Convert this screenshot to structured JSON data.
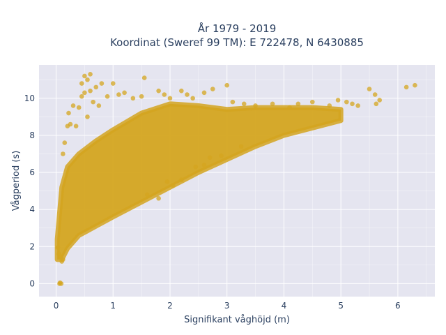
{
  "chart_data": {
    "type": "scatter",
    "title_lines": [
      "År 1979 - 2019",
      "Koordinat (Sweref 99 TM): E 722478, N 6430885"
    ],
    "xlabel": "Signifikant våghöjd (m)",
    "ylabel": "Vågperiod (s)",
    "xlim": [
      -0.3,
      6.65
    ],
    "ylim": [
      -0.7,
      11.8
    ],
    "x_ticks": [
      0,
      1,
      2,
      3,
      4,
      5,
      6
    ],
    "y_ticks": [
      0,
      2,
      4,
      6,
      8,
      10
    ],
    "grid": true,
    "legend": "none",
    "colors": {
      "points": "#d4a520",
      "plot_background": "#e5e5f0",
      "grid": "#ffffff",
      "text": "#2a3f5f"
    },
    "series": [
      {
        "band_lower": [
          [
            0.02,
            1.3
          ],
          [
            0.1,
            1.3
          ],
          [
            0.2,
            1.9
          ],
          [
            0.4,
            2.6
          ],
          [
            0.7,
            3.1
          ],
          [
            1.0,
            3.6
          ],
          [
            1.5,
            4.4
          ],
          [
            2.0,
            5.2
          ],
          [
            2.5,
            6.0
          ],
          [
            3.0,
            6.7
          ],
          [
            3.5,
            7.4
          ],
          [
            4.0,
            8.0
          ],
          [
            4.5,
            8.4
          ],
          [
            5.0,
            8.8
          ]
        ],
        "band_upper": [
          [
            0.02,
            2.4
          ],
          [
            0.1,
            5.2
          ],
          [
            0.2,
            6.3
          ],
          [
            0.4,
            7.0
          ],
          [
            0.7,
            7.7
          ],
          [
            1.0,
            8.3
          ],
          [
            1.5,
            9.2
          ],
          [
            2.0,
            9.7
          ],
          [
            2.5,
            9.6
          ],
          [
            3.0,
            9.4
          ],
          [
            3.5,
            9.5
          ],
          [
            4.0,
            9.5
          ],
          [
            4.5,
            9.5
          ],
          [
            5.0,
            9.4
          ]
        ],
        "points": [
          [
            0.35,
            8.5
          ],
          [
            0.4,
            9.5
          ],
          [
            0.45,
            10.1
          ],
          [
            0.5,
            11.2
          ],
          [
            0.55,
            11.0
          ],
          [
            0.6,
            11.3
          ],
          [
            0.6,
            10.4
          ],
          [
            0.5,
            10.3
          ],
          [
            0.45,
            10.8
          ],
          [
            0.7,
            10.6
          ],
          [
            0.8,
            10.8
          ],
          [
            0.65,
            9.8
          ],
          [
            0.3,
            9.6
          ],
          [
            0.25,
            8.6
          ],
          [
            0.2,
            8.5
          ],
          [
            0.15,
            7.6
          ],
          [
            0.12,
            7.0
          ],
          [
            0.22,
            9.2
          ],
          [
            0.55,
            9.0
          ],
          [
            0.75,
            9.6
          ],
          [
            0.9,
            10.1
          ],
          [
            1.0,
            10.8
          ],
          [
            1.1,
            10.2
          ],
          [
            1.2,
            10.3
          ],
          [
            1.35,
            10.0
          ],
          [
            1.5,
            10.1
          ],
          [
            1.55,
            11.1
          ],
          [
            1.8,
            10.4
          ],
          [
            1.9,
            10.2
          ],
          [
            2.0,
            10.0
          ],
          [
            2.2,
            10.4
          ],
          [
            2.3,
            10.2
          ],
          [
            2.4,
            10.0
          ],
          [
            2.6,
            10.3
          ],
          [
            2.75,
            10.5
          ],
          [
            3.0,
            10.7
          ],
          [
            3.1,
            9.8
          ],
          [
            3.3,
            9.7
          ],
          [
            3.5,
            9.6
          ],
          [
            3.8,
            9.7
          ],
          [
            4.1,
            9.5
          ],
          [
            4.5,
            9.8
          ],
          [
            4.8,
            9.6
          ],
          [
            5.2,
            9.7
          ],
          [
            5.5,
            10.5
          ],
          [
            5.6,
            10.2
          ],
          [
            5.62,
            9.7
          ],
          [
            5.68,
            9.9
          ],
          [
            6.15,
            10.6
          ],
          [
            6.3,
            10.7
          ],
          [
            5.3,
            9.6
          ],
          [
            5.1,
            9.8
          ],
          [
            4.95,
            9.9
          ],
          [
            4.25,
            9.7
          ],
          [
            2.7,
            6.8
          ],
          [
            2.9,
            6.9
          ],
          [
            3.25,
            7.4
          ],
          [
            2.6,
            6.4
          ],
          [
            2.45,
            6.3
          ],
          [
            2.2,
            5.6
          ],
          [
            2.05,
            5.3
          ],
          [
            1.95,
            5.5
          ],
          [
            1.8,
            4.6
          ],
          [
            1.6,
            4.8
          ],
          [
            0.06,
            0.0
          ],
          [
            0.09,
            0.0
          ],
          [
            0.07,
            0.05
          ],
          [
            0.05,
            1.6
          ],
          [
            0.03,
            1.95
          ],
          [
            0.1,
            1.2
          ],
          [
            0.12,
            1.3
          ],
          [
            0.08,
            1.4
          ]
        ]
      }
    ]
  }
}
